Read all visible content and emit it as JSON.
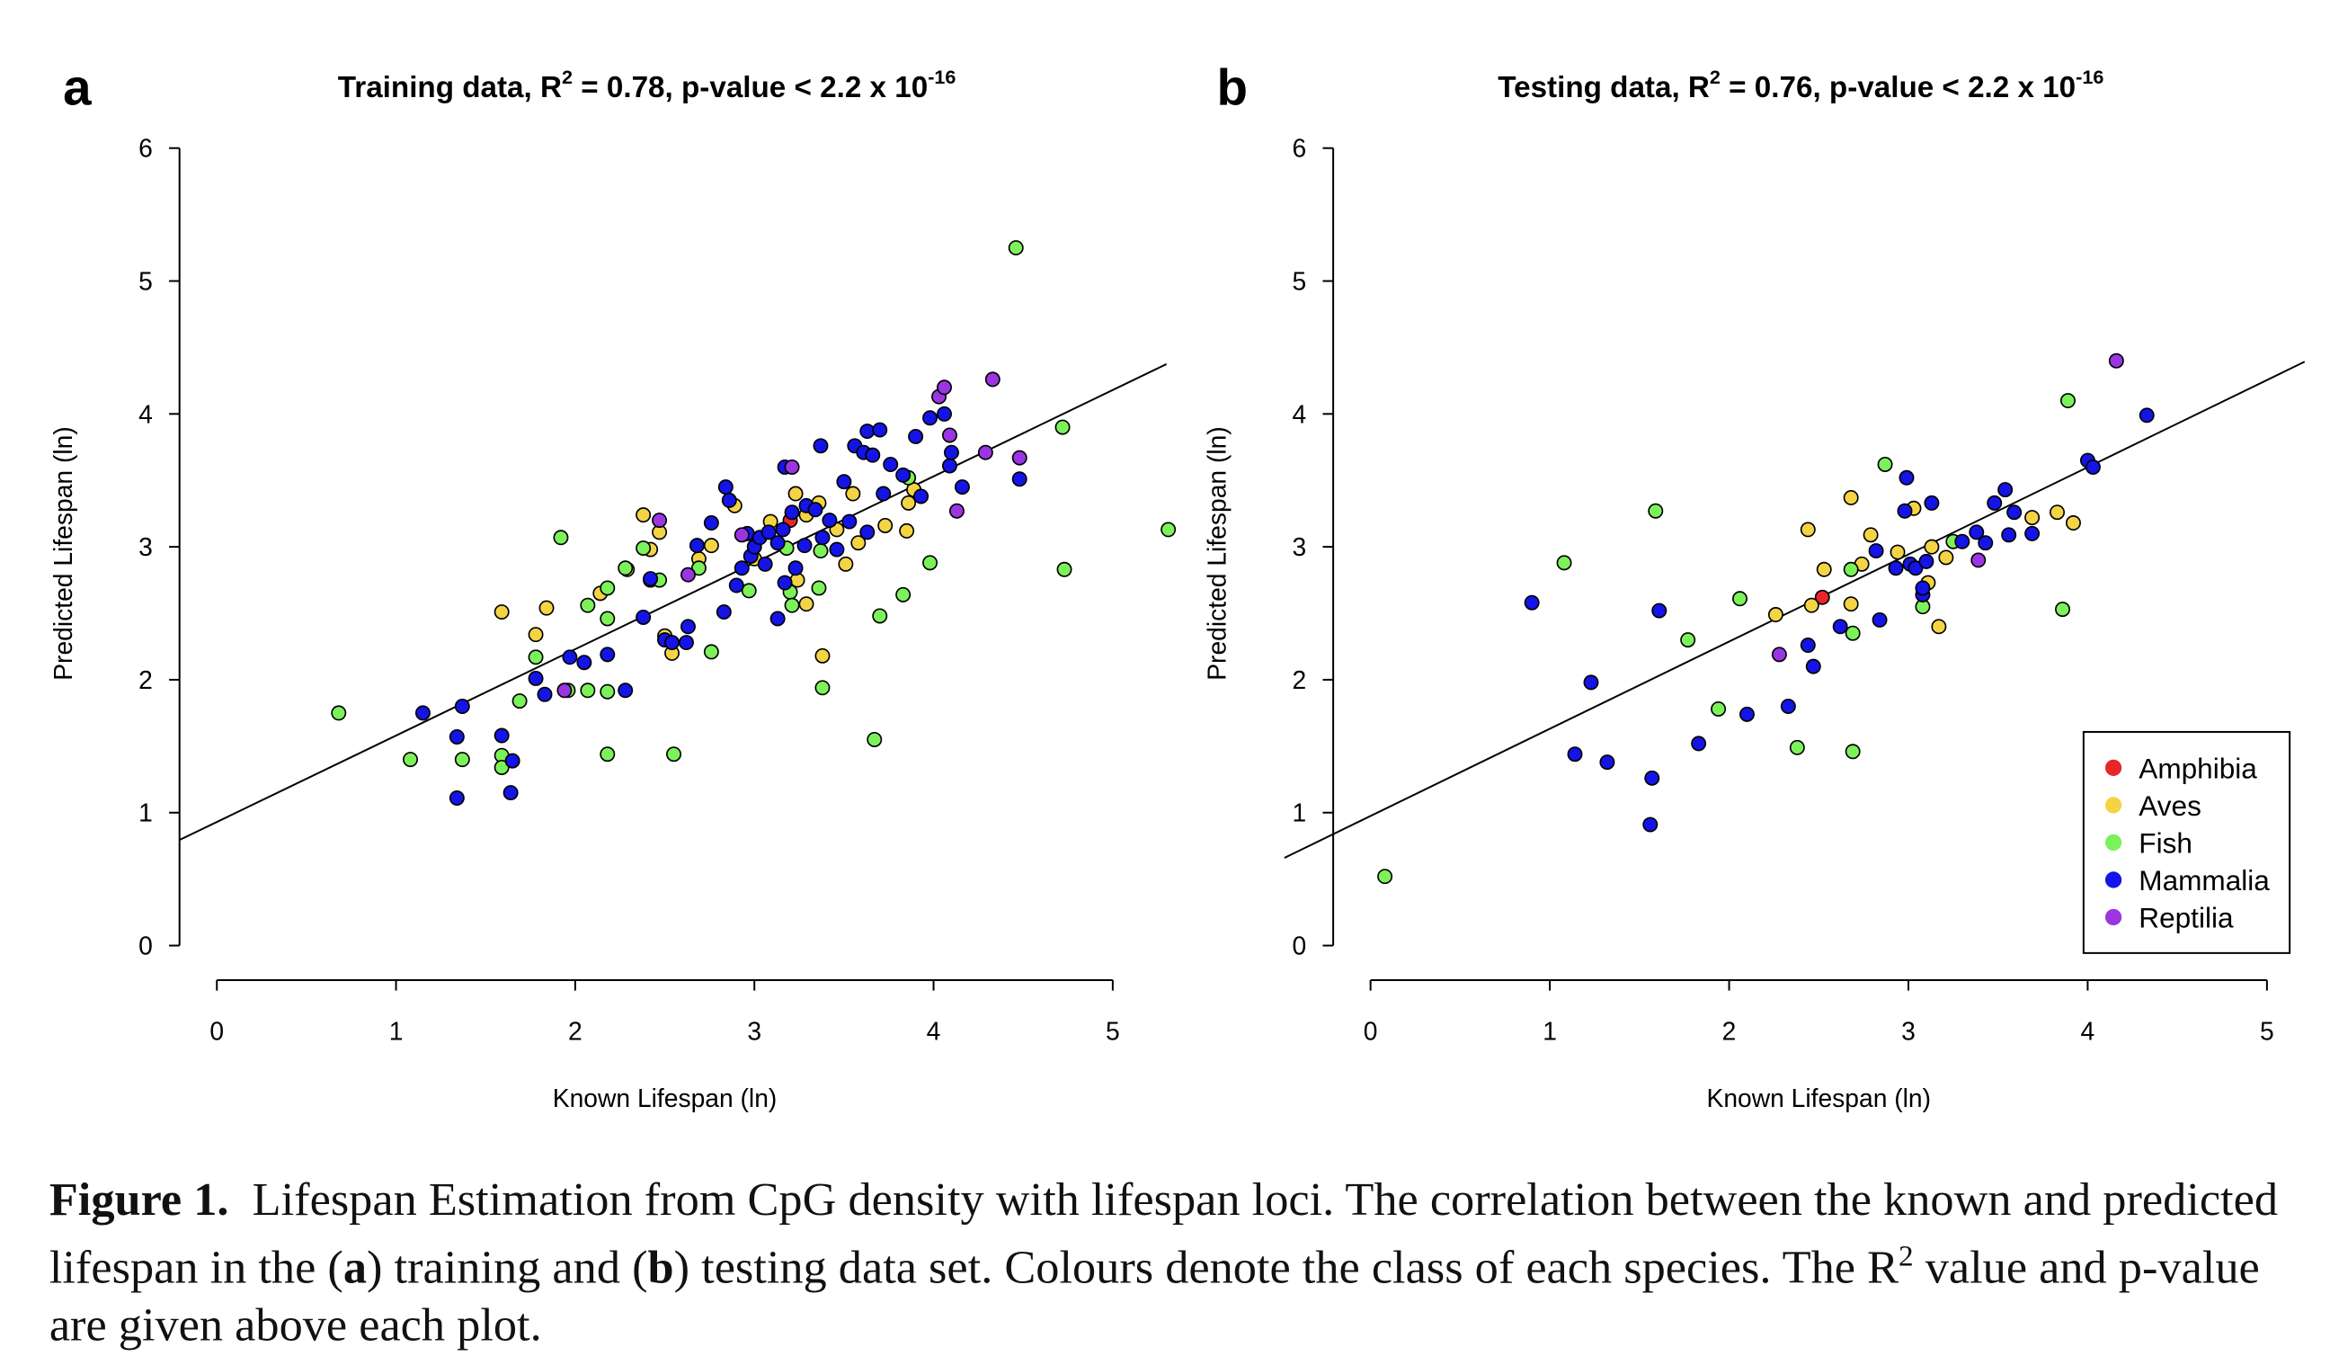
{
  "chart_data": [
    {
      "type": "scatter",
      "panel": "a",
      "title": [
        "Training data, R",
        "2",
        " = 0.78, p-value < 2.2 x 10",
        "-16"
      ],
      "x_label": "Known Lifespan (ln)",
      "y_label": "Predicted Lifespan (ln)",
      "xlim": [
        -0.21,
        5.3
      ],
      "ylim": [
        -0.26,
        6.26
      ],
      "xticks": [
        0,
        1,
        2,
        3,
        4,
        5
      ],
      "yticks": [
        0,
        1,
        2,
        3,
        4,
        5,
        6
      ],
      "fit_line": {
        "intercept": 0.93,
        "slope": 0.65
      },
      "series": [
        {
          "name": "Amphibia",
          "color": "#e8262a",
          "x": [
            3.2
          ],
          "y": [
            3.2
          ]
        },
        {
          "name": "Aves",
          "color": "#f4d444",
          "x": [
            1.59,
            1.78,
            1.84,
            2.14,
            2.29,
            2.38,
            2.42,
            2.47,
            2.42,
            2.5,
            2.54,
            2.69,
            2.76,
            2.89,
            3.0,
            3.09,
            3.23,
            3.24,
            3.29,
            3.36,
            3.38,
            3.46,
            3.51,
            3.55,
            3.58,
            3.73,
            3.85,
            3.86,
            3.89,
            3.29
          ],
          "y": [
            2.51,
            2.34,
            2.54,
            2.65,
            2.83,
            3.24,
            2.98,
            3.11,
            2.75,
            2.33,
            2.2,
            2.91,
            3.01,
            3.31,
            2.91,
            3.19,
            3.4,
            2.75,
            2.57,
            3.33,
            2.18,
            3.13,
            2.87,
            3.4,
            3.03,
            3.16,
            3.12,
            3.33,
            3.43,
            3.24
          ]
        },
        {
          "name": "Fish",
          "color": "#7cf25a",
          "x": [
            0.68,
            1.08,
            1.37,
            1.59,
            1.59,
            1.69,
            1.78,
            1.92,
            1.96,
            2.07,
            2.07,
            2.18,
            2.18,
            2.18,
            2.18,
            2.28,
            2.38,
            2.47,
            2.55,
            2.69,
            2.76,
            2.97,
            3.18,
            3.2,
            3.21,
            3.37,
            3.38,
            3.36,
            3.67,
            3.7,
            3.83,
            3.98,
            4.46,
            4.72,
            4.73,
            5.31,
            3.86
          ],
          "y": [
            1.75,
            1.4,
            1.4,
            1.43,
            1.34,
            1.84,
            2.17,
            3.07,
            1.92,
            2.56,
            1.92,
            2.69,
            2.46,
            1.91,
            1.44,
            2.84,
            2.99,
            2.75,
            1.44,
            2.84,
            2.21,
            2.67,
            2.99,
            2.66,
            2.56,
            2.97,
            1.94,
            2.69,
            1.55,
            2.48,
            2.64,
            2.88,
            5.25,
            3.9,
            2.83,
            3.13,
            3.52
          ]
        },
        {
          "name": "Mammalia",
          "color": "#1414e6",
          "x": [
            1.15,
            1.34,
            1.34,
            1.37,
            1.59,
            1.65,
            1.64,
            1.78,
            1.83,
            1.97,
            2.05,
            2.18,
            2.28,
            2.38,
            2.42,
            2.5,
            2.54,
            2.63,
            2.68,
            2.76,
            2.83,
            2.84,
            2.86,
            2.9,
            2.93,
            2.96,
            2.98,
            3.0,
            3.03,
            3.06,
            3.08,
            3.13,
            3.13,
            3.16,
            3.17,
            3.21,
            3.23,
            3.28,
            3.29,
            3.34,
            3.37,
            3.38,
            3.42,
            3.46,
            3.5,
            3.53,
            3.56,
            3.61,
            3.63,
            3.66,
            3.7,
            3.72,
            3.76,
            3.83,
            3.9,
            3.93,
            3.98,
            4.06,
            4.09,
            4.1,
            4.16,
            4.48,
            3.17,
            3.63,
            2.62
          ],
          "y": [
            1.75,
            1.57,
            1.11,
            1.8,
            1.58,
            1.39,
            1.15,
            2.01,
            1.89,
            2.17,
            2.13,
            2.19,
            1.92,
            2.47,
            2.76,
            2.3,
            2.28,
            2.4,
            3.01,
            3.18,
            2.51,
            3.45,
            3.35,
            2.71,
            2.84,
            3.1,
            2.93,
            3.0,
            3.07,
            2.87,
            3.11,
            2.46,
            3.03,
            3.13,
            3.6,
            3.26,
            2.84,
            3.01,
            3.31,
            3.28,
            3.76,
            3.07,
            3.2,
            2.98,
            3.49,
            3.19,
            3.76,
            3.71,
            3.87,
            3.69,
            3.88,
            3.4,
            3.62,
            3.54,
            3.83,
            3.38,
            3.97,
            4.0,
            3.61,
            3.71,
            3.45,
            3.51,
            2.73,
            3.11,
            2.28
          ]
        },
        {
          "name": "Reptilia",
          "color": "#9b35e2",
          "x": [
            1.94,
            2.47,
            2.63,
            2.93,
            3.21,
            4.03,
            4.06,
            4.09,
            4.13,
            4.29,
            4.33,
            4.48
          ],
          "y": [
            1.92,
            3.2,
            2.79,
            3.09,
            3.6,
            4.13,
            4.2,
            3.84,
            3.27,
            3.71,
            4.26,
            3.67
          ]
        }
      ]
    },
    {
      "type": "scatter",
      "panel": "b",
      "title": [
        "Testing data, R",
        "2",
        " = 0.76, p-value < 2.2 x 10",
        "-16"
      ],
      "x_label": "Known Lifespan (ln)",
      "y_label": "Predicted Lifespan (ln)",
      "xlim": [
        -0.48,
        5.21
      ],
      "ylim": [
        -0.26,
        6.26
      ],
      "xticks": [
        0,
        1,
        2,
        3,
        4,
        5
      ],
      "yticks": [
        0,
        1,
        2,
        3,
        4,
        5,
        6
      ],
      "fit_line": {
        "intercept": 0.975,
        "slope": 0.656
      },
      "legend": "bottom-right",
      "series": [
        {
          "name": "Amphibia",
          "color": "#e8262a",
          "x": [
            2.52
          ],
          "y": [
            2.62
          ]
        },
        {
          "name": "Aves",
          "color": "#f4d444",
          "x": [
            2.26,
            2.44,
            2.46,
            2.53,
            2.68,
            2.68,
            2.74,
            2.79,
            2.94,
            3.03,
            3.11,
            3.13,
            3.17,
            3.21,
            3.69,
            3.83,
            3.92
          ],
          "y": [
            2.49,
            3.13,
            2.56,
            2.83,
            2.57,
            3.37,
            2.87,
            3.09,
            2.96,
            3.29,
            2.73,
            3.0,
            2.4,
            2.92,
            3.22,
            3.26,
            3.18
          ]
        },
        {
          "name": "Fish",
          "color": "#7cf25a",
          "x": [
            0.08,
            1.08,
            1.59,
            1.77,
            1.94,
            2.06,
            2.38,
            2.68,
            2.69,
            2.69,
            2.87,
            3.08,
            3.25,
            3.86,
            3.89
          ],
          "y": [
            0.52,
            2.88,
            3.27,
            2.3,
            1.78,
            2.61,
            1.49,
            2.83,
            2.35,
            1.46,
            3.62,
            2.55,
            3.04,
            2.53,
            4.1
          ]
        },
        {
          "name": "Mammalia",
          "color": "#1414e6",
          "x": [
            0.9,
            1.14,
            1.23,
            1.32,
            1.56,
            1.57,
            1.61,
            1.83,
            2.1,
            2.33,
            2.44,
            2.47,
            2.62,
            2.82,
            2.84,
            2.93,
            2.98,
            2.99,
            3.01,
            3.04,
            3.08,
            3.08,
            3.1,
            3.13,
            3.3,
            3.38,
            3.43,
            3.48,
            3.54,
            3.56,
            3.59,
            3.69,
            4.0,
            4.03,
            4.33
          ],
          "y": [
            2.58,
            1.44,
            1.98,
            1.38,
            0.91,
            1.26,
            2.52,
            1.52,
            1.74,
            1.8,
            2.26,
            2.1,
            2.4,
            2.97,
            2.45,
            2.84,
            3.27,
            3.52,
            2.87,
            2.84,
            2.64,
            2.69,
            2.89,
            3.33,
            3.04,
            3.11,
            3.03,
            3.33,
            3.43,
            3.09,
            3.26,
            3.1,
            3.65,
            3.6,
            3.99
          ]
        },
        {
          "name": "Reptilia",
          "color": "#9b35e2",
          "x": [
            2.28,
            3.39,
            4.16
          ],
          "y": [
            2.19,
            2.9,
            4.4
          ]
        }
      ]
    }
  ],
  "caption": {
    "label": "Figure 1.",
    "parts": [
      "Lifespan Estimation from CpG density with lifespan loci. The correlation between the known and predicted lifespan in the (",
      "a",
      ") training and (",
      "b",
      ") testing data set. Colours denote the class of each species. The R",
      "2",
      " value and p-value are given above each plot."
    ]
  }
}
